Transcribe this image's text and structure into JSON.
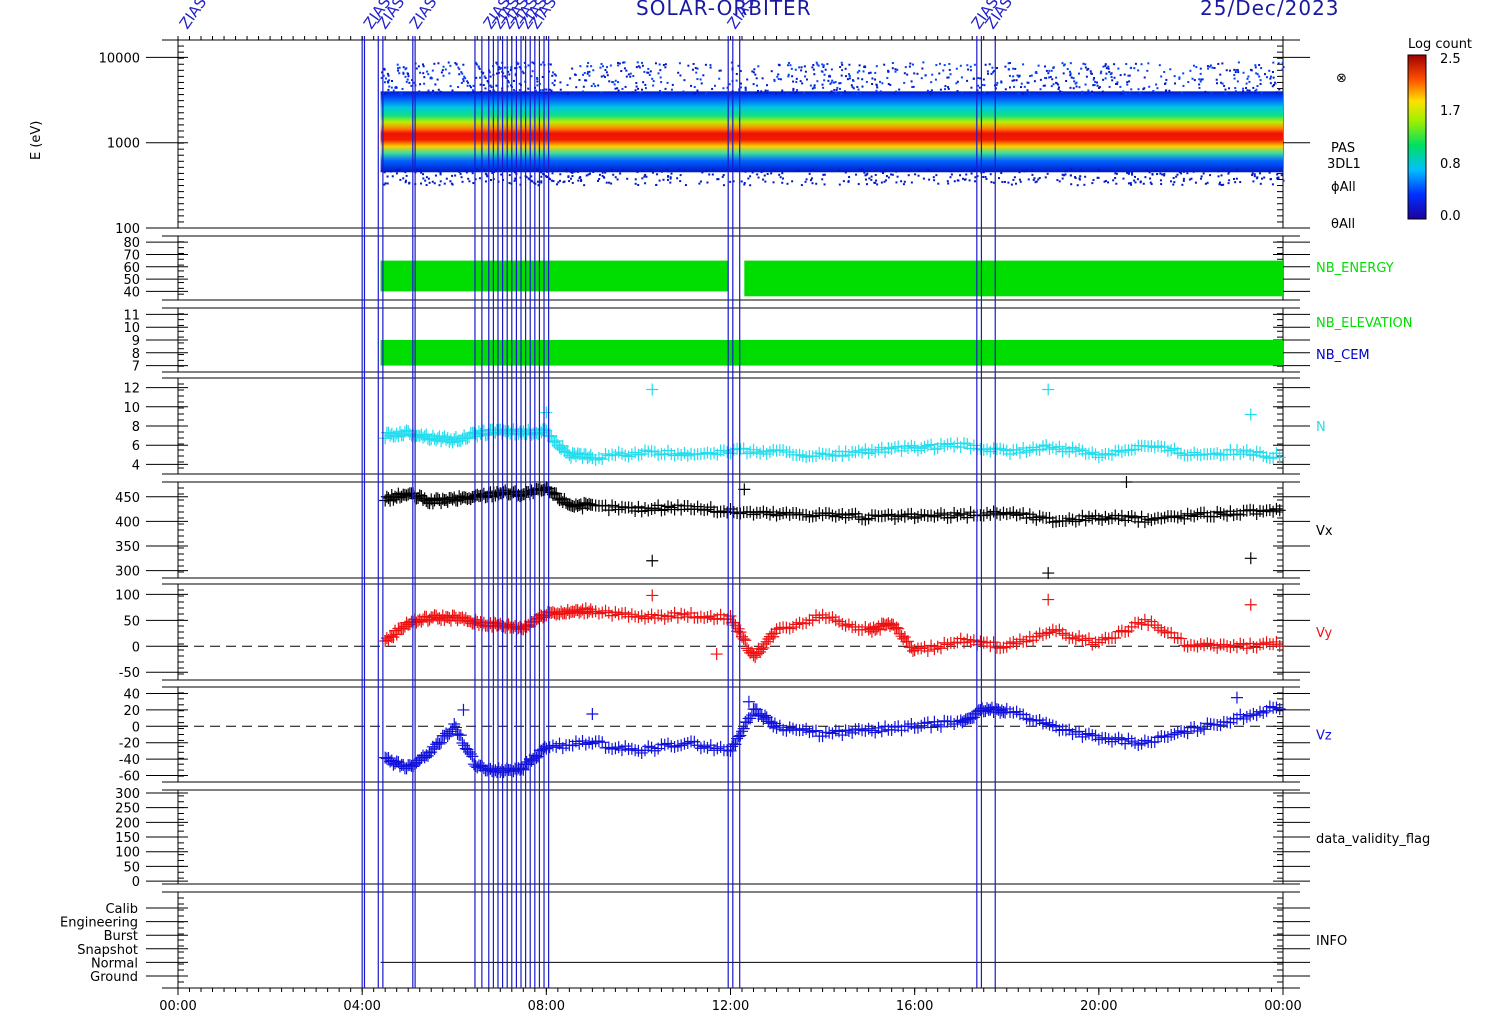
{
  "header": {
    "mission": "SOLAR-ORBITER",
    "date": "25/Dec/2023",
    "event_marker_label": "ZIAS"
  },
  "chart_data": [
    {
      "type": "heatmap",
      "ylabel": "E (eV)",
      "yscale": "log",
      "ylim": [
        100,
        16000
      ],
      "yticks": [
        "10000",
        "1000",
        "100"
      ],
      "colorbar": {
        "title": "Log count",
        "ticks": [
          "2.5",
          "1.7",
          "0.8",
          "0.0"
        ],
        "range": [
          0.0,
          2.5
        ]
      },
      "right_labels": [
        "PAS",
        "3DL1",
        "ϕAll",
        "θAll"
      ],
      "data_start_hour": 4.4,
      "peak_energy_ev": 1000,
      "band_range_ev": [
        450,
        4000
      ]
    },
    {
      "type": "bar",
      "name": "NB_ENERGY",
      "color": "#00dd00",
      "yticks": [
        "80",
        "70",
        "60",
        "50",
        "40"
      ],
      "ylim": [
        33,
        85
      ],
      "segments": [
        {
          "x": [
            4.4,
            11.95
          ],
          "range": [
            40,
            65
          ]
        },
        {
          "x": [
            12.3,
            24.0
          ],
          "range": [
            36,
            65
          ]
        }
      ]
    },
    {
      "type": "bar",
      "series": [
        {
          "name": "NB_ELEVATION",
          "color": "#00dd00"
        },
        {
          "name": "NB_CEM",
          "color": "#0000cc"
        }
      ],
      "yticks": [
        "11",
        "10",
        "9",
        "8",
        "7"
      ],
      "ylim": [
        6.5,
        11.5
      ],
      "range": [
        7,
        9
      ],
      "x": [
        4.4,
        24.0
      ]
    },
    {
      "type": "scatter",
      "name": "N",
      "color": "#22ddee",
      "yticks": [
        "12",
        "10",
        "8",
        "6",
        "4"
      ],
      "ylim": [
        3,
        13
      ],
      "x": [
        4.5,
        5.0,
        5.5,
        6.0,
        6.5,
        7.0,
        7.5,
        8.0,
        8.5,
        9.0,
        10.0,
        11.0,
        12.0,
        13.0,
        14.0,
        15.0,
        16.0,
        17.0,
        18.0,
        19.0,
        20.0,
        21.0,
        22.0,
        23.0,
        24.0
      ],
      "values": [
        7.0,
        7.3,
        6.8,
        6.5,
        7.2,
        7.5,
        7.3,
        7.4,
        5.0,
        4.7,
        5.2,
        5.1,
        5.4,
        5.3,
        4.9,
        5.4,
        5.7,
        6.0,
        5.3,
        5.8,
        5.0,
        6.0,
        5.1,
        5.3,
        4.8
      ],
      "outliers": [
        [
          10.3,
          11.8
        ],
        [
          18.9,
          11.8
        ],
        [
          23.3,
          9.2
        ],
        [
          8.0,
          9.4
        ]
      ]
    },
    {
      "type": "scatter",
      "name": "Vx",
      "color": "#000000",
      "yticks": [
        "450",
        "400",
        "350",
        "300"
      ],
      "ylim": [
        285,
        480
      ],
      "x": [
        4.5,
        5.0,
        5.5,
        6.0,
        6.5,
        7.0,
        7.5,
        8.0,
        8.5,
        9.0,
        10.0,
        11.0,
        12.0,
        13.0,
        14.0,
        15.0,
        16.0,
        17.0,
        18.0,
        19.0,
        20.0,
        21.0,
        22.0,
        23.0,
        24.0
      ],
      "values": [
        445,
        455,
        440,
        445,
        450,
        460,
        455,
        465,
        435,
        430,
        425,
        430,
        420,
        415,
        415,
        408,
        410,
        412,
        418,
        402,
        408,
        404,
        412,
        418,
        420
      ],
      "outliers": [
        [
          10.3,
          320
        ],
        [
          18.9,
          295
        ],
        [
          23.3,
          325
        ],
        [
          20.6,
          480
        ],
        [
          12.3,
          465
        ]
      ]
    },
    {
      "type": "scatter",
      "name": "Vy",
      "color": "#ee1111",
      "yticks": [
        "100",
        "50",
        "0",
        "-50"
      ],
      "ylim": [
        -65,
        120
      ],
      "zero_line": true,
      "x": [
        4.5,
        5.0,
        5.5,
        6.0,
        6.5,
        7.0,
        7.5,
        8.0,
        8.5,
        9.0,
        10.0,
        11.0,
        12.0,
        12.5,
        13.0,
        14.0,
        15.0,
        15.5,
        16.0,
        17.0,
        18.0,
        19.0,
        20.0,
        21.0,
        22.0,
        23.0,
        24.0
      ],
      "values": [
        10,
        45,
        55,
        55,
        45,
        40,
        35,
        65,
        65,
        70,
        55,
        60,
        55,
        -20,
        30,
        60,
        30,
        45,
        -10,
        10,
        0,
        30,
        5,
        50,
        0,
        0,
        5
      ],
      "outliers": [
        [
          10.3,
          98
        ],
        [
          18.9,
          90
        ],
        [
          23.3,
          80
        ],
        [
          11.7,
          -15
        ]
      ]
    },
    {
      "type": "scatter",
      "name": "Vz",
      "color": "#1111dd",
      "yticks": [
        "40",
        "20",
        "0",
        "-20",
        "-40",
        "-60"
      ],
      "ylim": [
        -68,
        48
      ],
      "zero_line": true,
      "x": [
        4.5,
        5.0,
        5.5,
        6.0,
        6.5,
        7.0,
        7.5,
        8.0,
        9.0,
        10.0,
        11.0,
        12.0,
        12.5,
        13.0,
        14.0,
        15.0,
        16.0,
        17.0,
        17.5,
        18.0,
        19.0,
        20.0,
        21.0,
        22.0,
        23.0,
        24.0
      ],
      "values": [
        -40,
        -50,
        -30,
        0,
        -50,
        -55,
        -50,
        -25,
        -20,
        -30,
        -20,
        -30,
        20,
        0,
        -10,
        -5,
        0,
        5,
        20,
        20,
        0,
        -15,
        -20,
        -5,
        10,
        25
      ],
      "outliers": [
        [
          6.2,
          20
        ],
        [
          9.0,
          15
        ],
        [
          23.0,
          35
        ],
        [
          12.4,
          30
        ]
      ]
    },
    {
      "type": "scatter",
      "name": "data_validity_flag",
      "yticks": [
        "300",
        "250",
        "200",
        "150",
        "100",
        "50",
        "0"
      ],
      "ylim": [
        -10,
        310
      ]
    },
    {
      "type": "table",
      "name": "INFO",
      "yticks": [
        "Calib",
        "Engineering",
        "Burst",
        "Snapshot",
        "Normal",
        "Ground"
      ],
      "active_level": "Normal",
      "x": [
        4.4,
        24.0
      ]
    }
  ],
  "x_axis": {
    "ticks": [
      "00:00",
      "04:00",
      "08:00",
      "12:00",
      "16:00",
      "20:00",
      "00:00"
    ],
    "range_hours": [
      0,
      24
    ]
  },
  "event_lines_hours": [
    4.0,
    4.05,
    4.35,
    4.45,
    5.1,
    5.15,
    6.45,
    6.6,
    6.75,
    6.85,
    6.95,
    7.05,
    7.15,
    7.25,
    7.35,
    7.45,
    7.55,
    7.65,
    7.75,
    7.85,
    7.95,
    8.05,
    11.95,
    12.05,
    12.2,
    17.35,
    17.45,
    17.75
  ],
  "label_markers_hours": [
    0.2,
    4.2,
    4.5,
    5.2,
    6.8,
    7.0,
    7.2,
    7.4,
    7.6,
    7.8,
    12.1,
    17.4,
    17.7
  ]
}
